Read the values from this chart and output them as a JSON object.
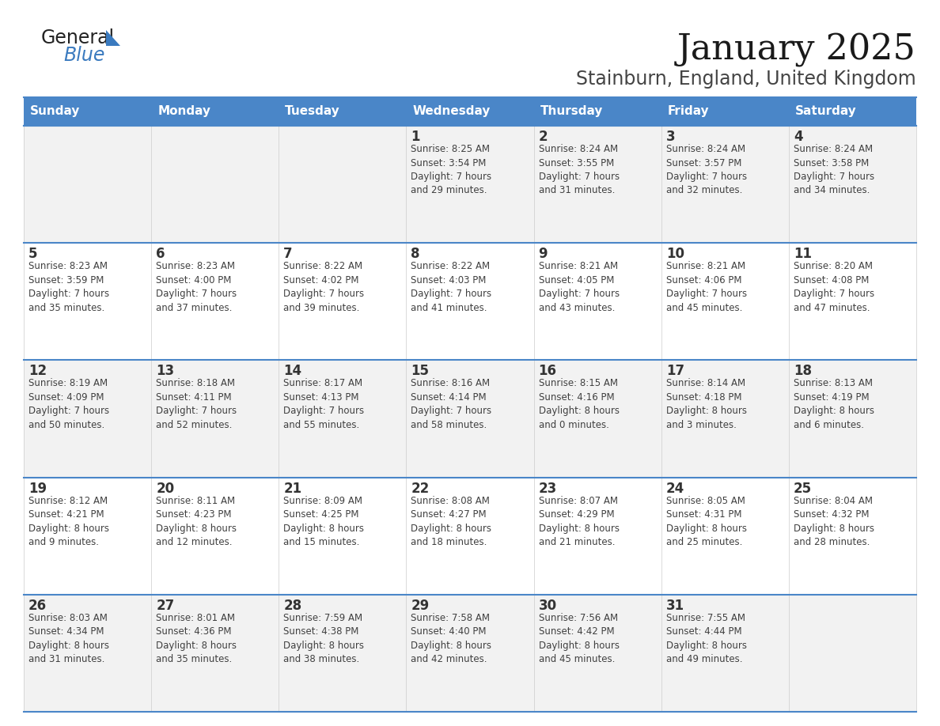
{
  "title": "January 2025",
  "subtitle": "Stainburn, England, United Kingdom",
  "header_bg": "#4a86c8",
  "header_text_color": "#ffffff",
  "cell_bg_white": "#ffffff",
  "cell_bg_gray": "#f2f2f2",
  "border_color": "#4a86c8",
  "text_color": "#404040",
  "day_num_color": "#333333",
  "logo_general_color": "#222222",
  "logo_blue_color": "#3a7abf",
  "logo_triangle_color": "#3a7abf",
  "days_of_week": [
    "Sunday",
    "Monday",
    "Tuesday",
    "Wednesday",
    "Thursday",
    "Friday",
    "Saturday"
  ],
  "weeks": [
    [
      {
        "day": "",
        "info": ""
      },
      {
        "day": "",
        "info": ""
      },
      {
        "day": "",
        "info": ""
      },
      {
        "day": "1",
        "info": "Sunrise: 8:25 AM\nSunset: 3:54 PM\nDaylight: 7 hours\nand 29 minutes."
      },
      {
        "day": "2",
        "info": "Sunrise: 8:24 AM\nSunset: 3:55 PM\nDaylight: 7 hours\nand 31 minutes."
      },
      {
        "day": "3",
        "info": "Sunrise: 8:24 AM\nSunset: 3:57 PM\nDaylight: 7 hours\nand 32 minutes."
      },
      {
        "day": "4",
        "info": "Sunrise: 8:24 AM\nSunset: 3:58 PM\nDaylight: 7 hours\nand 34 minutes."
      }
    ],
    [
      {
        "day": "5",
        "info": "Sunrise: 8:23 AM\nSunset: 3:59 PM\nDaylight: 7 hours\nand 35 minutes."
      },
      {
        "day": "6",
        "info": "Sunrise: 8:23 AM\nSunset: 4:00 PM\nDaylight: 7 hours\nand 37 minutes."
      },
      {
        "day": "7",
        "info": "Sunrise: 8:22 AM\nSunset: 4:02 PM\nDaylight: 7 hours\nand 39 minutes."
      },
      {
        "day": "8",
        "info": "Sunrise: 8:22 AM\nSunset: 4:03 PM\nDaylight: 7 hours\nand 41 minutes."
      },
      {
        "day": "9",
        "info": "Sunrise: 8:21 AM\nSunset: 4:05 PM\nDaylight: 7 hours\nand 43 minutes."
      },
      {
        "day": "10",
        "info": "Sunrise: 8:21 AM\nSunset: 4:06 PM\nDaylight: 7 hours\nand 45 minutes."
      },
      {
        "day": "11",
        "info": "Sunrise: 8:20 AM\nSunset: 4:08 PM\nDaylight: 7 hours\nand 47 minutes."
      }
    ],
    [
      {
        "day": "12",
        "info": "Sunrise: 8:19 AM\nSunset: 4:09 PM\nDaylight: 7 hours\nand 50 minutes."
      },
      {
        "day": "13",
        "info": "Sunrise: 8:18 AM\nSunset: 4:11 PM\nDaylight: 7 hours\nand 52 minutes."
      },
      {
        "day": "14",
        "info": "Sunrise: 8:17 AM\nSunset: 4:13 PM\nDaylight: 7 hours\nand 55 minutes."
      },
      {
        "day": "15",
        "info": "Sunrise: 8:16 AM\nSunset: 4:14 PM\nDaylight: 7 hours\nand 58 minutes."
      },
      {
        "day": "16",
        "info": "Sunrise: 8:15 AM\nSunset: 4:16 PM\nDaylight: 8 hours\nand 0 minutes."
      },
      {
        "day": "17",
        "info": "Sunrise: 8:14 AM\nSunset: 4:18 PM\nDaylight: 8 hours\nand 3 minutes."
      },
      {
        "day": "18",
        "info": "Sunrise: 8:13 AM\nSunset: 4:19 PM\nDaylight: 8 hours\nand 6 minutes."
      }
    ],
    [
      {
        "day": "19",
        "info": "Sunrise: 8:12 AM\nSunset: 4:21 PM\nDaylight: 8 hours\nand 9 minutes."
      },
      {
        "day": "20",
        "info": "Sunrise: 8:11 AM\nSunset: 4:23 PM\nDaylight: 8 hours\nand 12 minutes."
      },
      {
        "day": "21",
        "info": "Sunrise: 8:09 AM\nSunset: 4:25 PM\nDaylight: 8 hours\nand 15 minutes."
      },
      {
        "day": "22",
        "info": "Sunrise: 8:08 AM\nSunset: 4:27 PM\nDaylight: 8 hours\nand 18 minutes."
      },
      {
        "day": "23",
        "info": "Sunrise: 8:07 AM\nSunset: 4:29 PM\nDaylight: 8 hours\nand 21 minutes."
      },
      {
        "day": "24",
        "info": "Sunrise: 8:05 AM\nSunset: 4:31 PM\nDaylight: 8 hours\nand 25 minutes."
      },
      {
        "day": "25",
        "info": "Sunrise: 8:04 AM\nSunset: 4:32 PM\nDaylight: 8 hours\nand 28 minutes."
      }
    ],
    [
      {
        "day": "26",
        "info": "Sunrise: 8:03 AM\nSunset: 4:34 PM\nDaylight: 8 hours\nand 31 minutes."
      },
      {
        "day": "27",
        "info": "Sunrise: 8:01 AM\nSunset: 4:36 PM\nDaylight: 8 hours\nand 35 minutes."
      },
      {
        "day": "28",
        "info": "Sunrise: 7:59 AM\nSunset: 4:38 PM\nDaylight: 8 hours\nand 38 minutes."
      },
      {
        "day": "29",
        "info": "Sunrise: 7:58 AM\nSunset: 4:40 PM\nDaylight: 8 hours\nand 42 minutes."
      },
      {
        "day": "30",
        "info": "Sunrise: 7:56 AM\nSunset: 4:42 PM\nDaylight: 8 hours\nand 45 minutes."
      },
      {
        "day": "31",
        "info": "Sunrise: 7:55 AM\nSunset: 4:44 PM\nDaylight: 8 hours\nand 49 minutes."
      },
      {
        "day": "",
        "info": ""
      }
    ]
  ],
  "title_fontsize": 32,
  "subtitle_fontsize": 17,
  "header_fontsize": 11,
  "day_num_fontsize": 12,
  "info_fontsize": 8.5,
  "logo_fontsize_general": 17,
  "logo_fontsize_blue": 17
}
